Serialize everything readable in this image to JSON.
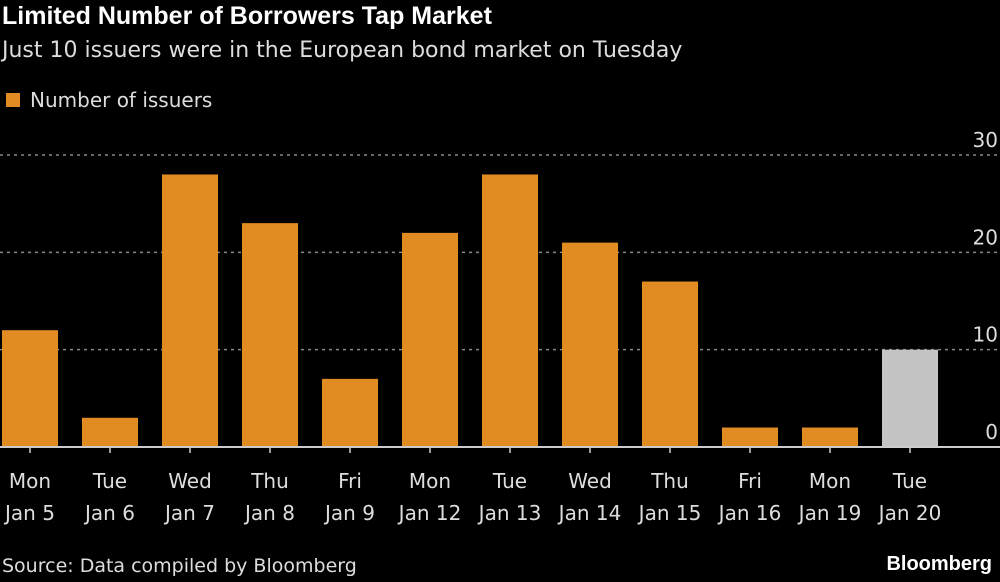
{
  "chart_data": {
    "type": "bar",
    "title": "Limited Number of Borrowers Tap Market",
    "subtitle": "Just 10 issuers were in the European bond market on Tuesday",
    "legend": [
      "Number of issuers"
    ],
    "legend_placement": "top-left",
    "categories": [
      [
        "Mon",
        "Jan 5"
      ],
      [
        "Tue",
        "Jan 6"
      ],
      [
        "Wed",
        "Jan 7"
      ],
      [
        "Thu",
        "Jan 8"
      ],
      [
        "Fri",
        "Jan 9"
      ],
      [
        "Mon",
        "Jan 12"
      ],
      [
        "Tue",
        "Jan 13"
      ],
      [
        "Wed",
        "Jan 14"
      ],
      [
        "Thu",
        "Jan 15"
      ],
      [
        "Fri",
        "Jan 16"
      ],
      [
        "Mon",
        "Jan 19"
      ],
      [
        "Tue",
        "Jan 20"
      ]
    ],
    "values": [
      12,
      3,
      28,
      23,
      7,
      22,
      28,
      21,
      17,
      2,
      2,
      10
    ],
    "highlight_index": 11,
    "ylim": [
      0,
      30
    ],
    "yticks": [
      "0",
      "10",
      "20",
      "30"
    ],
    "grid": true,
    "colors": {
      "bar": "#e08c23",
      "highlight": "#c4c4c4"
    }
  },
  "footer": {
    "source": "Source: Data compiled by Bloomberg",
    "brand": "Bloomberg"
  }
}
